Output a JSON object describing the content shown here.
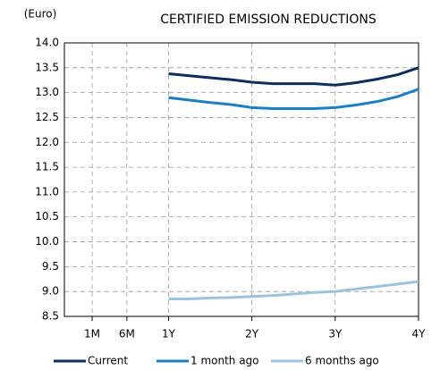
{
  "chart_data": {
    "type": "line",
    "title": "CERTIFIED EMISSION REDUCTIONS",
    "y_label": "(Euro)",
    "x": [
      12,
      15,
      18,
      21,
      24,
      27,
      30,
      33,
      36,
      39,
      42,
      45,
      48
    ],
    "xlim": [
      -3,
      48
    ],
    "xticks": [
      {
        "value": 1,
        "label": "1M"
      },
      {
        "value": 6,
        "label": "6M"
      },
      {
        "value": 12,
        "label": "1Y"
      },
      {
        "value": 24,
        "label": "2Y"
      },
      {
        "value": 36,
        "label": "3Y"
      },
      {
        "value": 48,
        "label": "4Y"
      }
    ],
    "ylim": [
      8.5,
      14
    ],
    "yticks": [
      {
        "value": 8.5,
        "label": "8.5"
      },
      {
        "value": 9,
        "label": "9.0"
      },
      {
        "value": 9.5,
        "label": "9.5"
      },
      {
        "value": 10,
        "label": "10.0"
      },
      {
        "value": 10.5,
        "label": "10.5"
      },
      {
        "value": 11,
        "label": "11.0"
      },
      {
        "value": 11.5,
        "label": "11.5"
      },
      {
        "value": 12,
        "label": "12.0"
      },
      {
        "value": 12.5,
        "label": "12.5"
      },
      {
        "value": 13,
        "label": "13.0"
      },
      {
        "value": 13.5,
        "label": "13.5"
      },
      {
        "value": 14,
        "label": "14.0"
      }
    ],
    "grid": true,
    "legend": "bottom",
    "series": [
      {
        "name": "Current",
        "color": "#0d2f5b",
        "values": [
          13.38,
          13.34,
          13.3,
          13.26,
          13.21,
          13.18,
          13.18,
          13.18,
          13.15,
          13.2,
          13.27,
          13.36,
          13.5
        ]
      },
      {
        "name": "1 month ago",
        "color": "#1a7fc4",
        "values": [
          12.9,
          12.85,
          12.8,
          12.76,
          12.7,
          12.68,
          12.68,
          12.68,
          12.7,
          12.75,
          12.82,
          12.92,
          13.07
        ]
      },
      {
        "name": "6 months ago",
        "color": "#9cc3dd",
        "values": [
          8.85,
          8.85,
          8.87,
          8.88,
          8.9,
          8.92,
          8.95,
          8.98,
          9.0,
          9.05,
          9.1,
          9.15,
          9.2
        ]
      }
    ]
  }
}
